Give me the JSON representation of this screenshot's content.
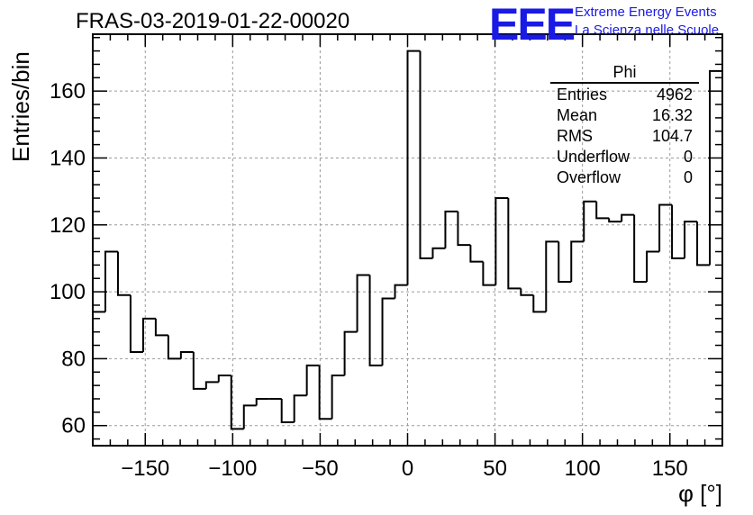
{
  "header": {
    "title": "FRAS-03-2019-01-22-00020",
    "logo": "EEE",
    "logo_line1": "Extreme Energy Events",
    "logo_line2": "La Scienza nelle Scuole"
  },
  "stats_box": {
    "title": "Phi",
    "rows": [
      {
        "label": "Entries",
        "value": "4962"
      },
      {
        "label": "Mean",
        "value": "16.32"
      },
      {
        "label": "RMS",
        "value": "104.7"
      },
      {
        "label": "Underflow",
        "value": "0"
      },
      {
        "label": "Overflow",
        "value": "0"
      }
    ]
  },
  "colors": {
    "line": "#000000",
    "grid": "#9a9a9a",
    "logo": "#1a1ae6"
  },
  "chart_data": {
    "type": "histogram",
    "title": "FRAS-03-2019-01-22-00020",
    "xlabel": "φ [°]",
    "ylabel": "Entries/bin",
    "xlim": [
      -180,
      180
    ],
    "ylim": [
      54,
      177
    ],
    "bin_width": 7.2,
    "grid": true,
    "x_ticks": [
      -150,
      -100,
      -50,
      0,
      50,
      100,
      150
    ],
    "y_ticks": [
      60,
      80,
      100,
      120,
      140,
      160
    ],
    "values": [
      94,
      112,
      99,
      82,
      92,
      87,
      80,
      82,
      71,
      73,
      75,
      59,
      66,
      68,
      68,
      61,
      69,
      78,
      62,
      75,
      88,
      105,
      78,
      98,
      102,
      172,
      110,
      113,
      124,
      114,
      109,
      102,
      128,
      101,
      99,
      94,
      115,
      103,
      115,
      127,
      122,
      121,
      123,
      103,
      112,
      126,
      110,
      121,
      108,
      166
    ]
  }
}
